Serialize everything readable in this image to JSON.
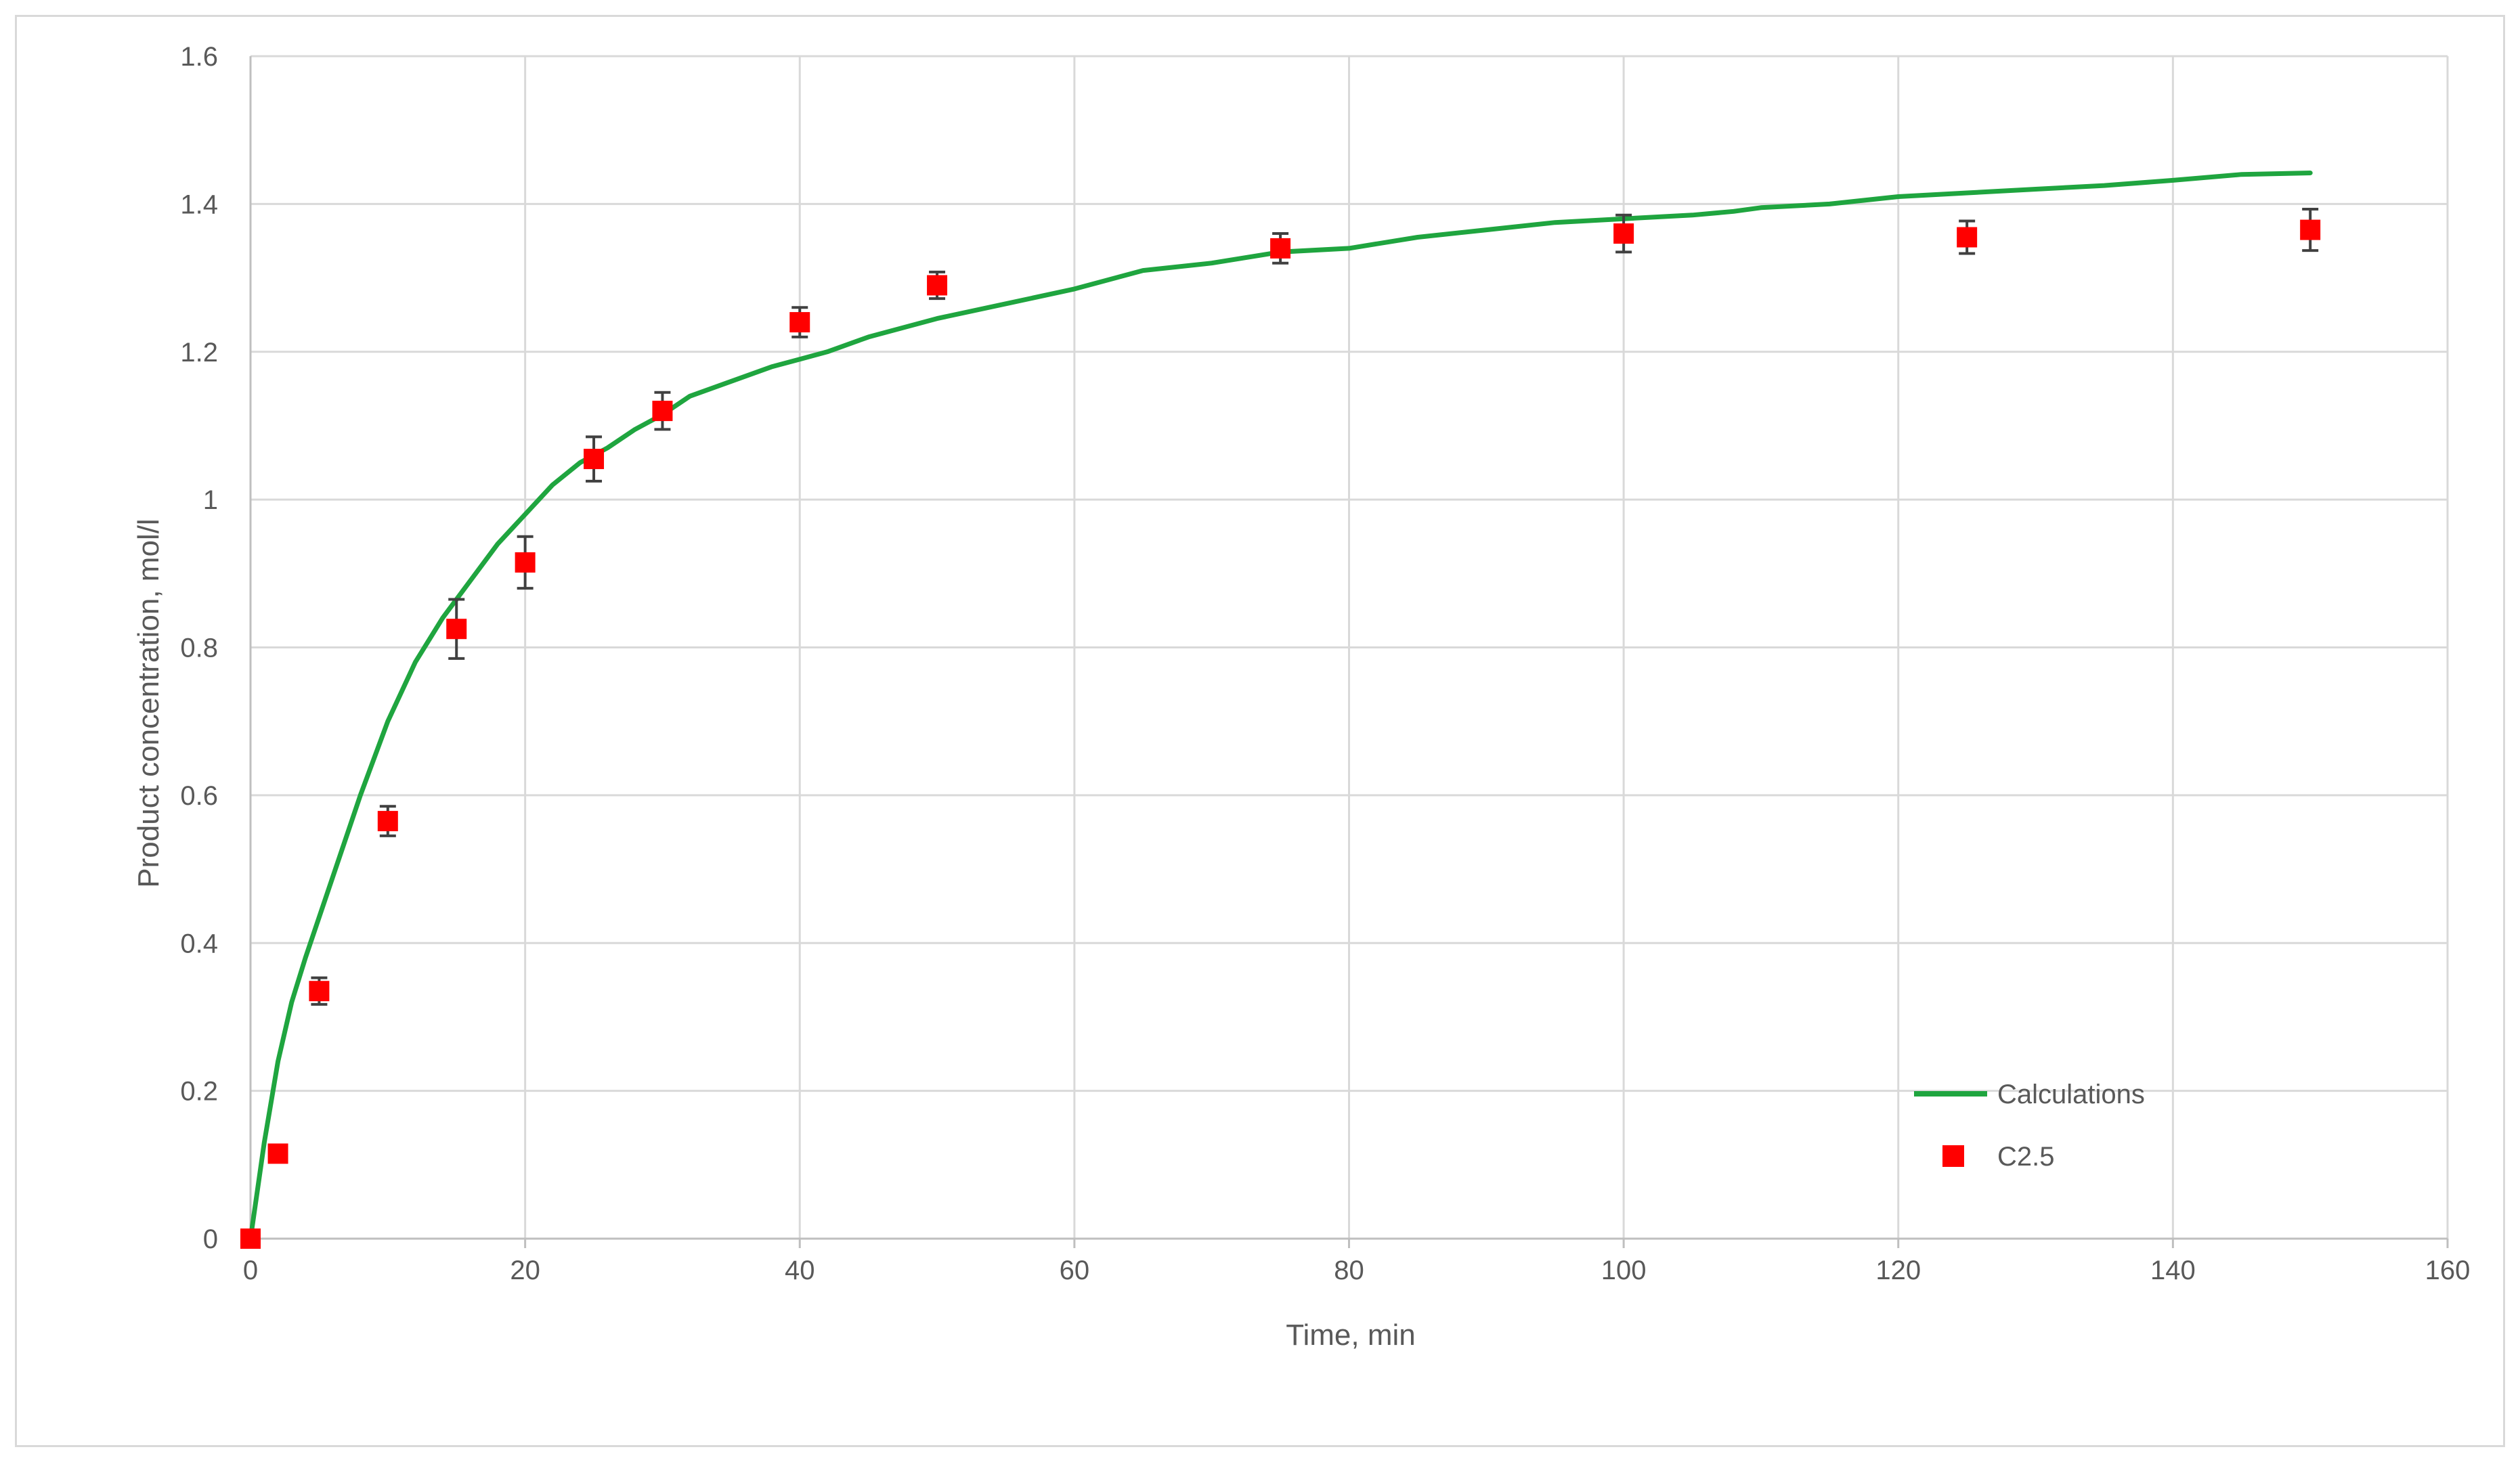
{
  "chart_data": {
    "type": "scatter",
    "title": "",
    "xlabel": "Time, min",
    "ylabel": "Product concentration, mol/l",
    "xlim": [
      0,
      160
    ],
    "ylim": [
      0,
      1.6
    ],
    "x_ticks": [
      0,
      20,
      40,
      60,
      80,
      100,
      120,
      140,
      160
    ],
    "y_ticks": [
      0,
      0.2,
      0.4,
      0.6,
      0.8,
      1,
      1.2,
      1.4,
      1.6
    ],
    "x_tick_labels": [
      "0",
      "20",
      "40",
      "60",
      "80",
      "100",
      "120",
      "140",
      "160"
    ],
    "y_tick_labels": [
      "0",
      "0.2",
      "0.4",
      "0.6",
      "0.8",
      "1",
      "1.2",
      "1.4",
      "1.6"
    ],
    "grid": true,
    "legend_position": "bottom-right",
    "series": [
      {
        "name": "Calculations",
        "kind": "line",
        "color": "#1fa53f",
        "x": [
          0,
          1,
          2,
          3,
          4,
          6,
          8,
          10,
          12,
          14,
          16,
          18,
          20,
          22,
          24,
          26,
          28,
          30,
          32,
          35,
          38,
          40,
          42,
          45,
          50,
          55,
          60,
          62,
          65,
          70,
          75,
          80,
          85,
          90,
          95,
          100,
          105,
          108,
          110,
          115,
          120,
          125,
          130,
          135,
          140,
          145,
          150
        ],
        "y": [
          0,
          0.13,
          0.24,
          0.32,
          0.38,
          0.49,
          0.6,
          0.7,
          0.78,
          0.84,
          0.89,
          0.94,
          0.98,
          1.02,
          1.05,
          1.07,
          1.095,
          1.115,
          1.14,
          1.16,
          1.18,
          1.19,
          1.2,
          1.22,
          1.245,
          1.265,
          1.285,
          1.295,
          1.31,
          1.32,
          1.335,
          1.34,
          1.355,
          1.365,
          1.375,
          1.38,
          1.385,
          1.39,
          1.395,
          1.4,
          1.41,
          1.415,
          1.42,
          1.425,
          1.432,
          1.44,
          1.442
        ]
      },
      {
        "name": "C2.5",
        "kind": "scatter",
        "color": "#ff0000",
        "x": [
          0,
          2,
          5,
          10,
          15,
          20,
          25,
          30,
          40,
          50,
          75,
          100,
          125,
          150
        ],
        "y": [
          0,
          0.115,
          0.335,
          0.565,
          0.825,
          0.915,
          1.055,
          1.12,
          1.24,
          1.29,
          1.34,
          1.36,
          1.355,
          1.365
        ],
        "error": [
          0,
          0.01,
          0.018,
          0.02,
          0.04,
          0.035,
          0.03,
          0.025,
          0.02,
          0.018,
          0.02,
          0.025,
          0.022,
          0.028
        ]
      }
    ],
    "legend": {
      "entries": [
        "Calculations",
        "C2.5"
      ]
    }
  }
}
